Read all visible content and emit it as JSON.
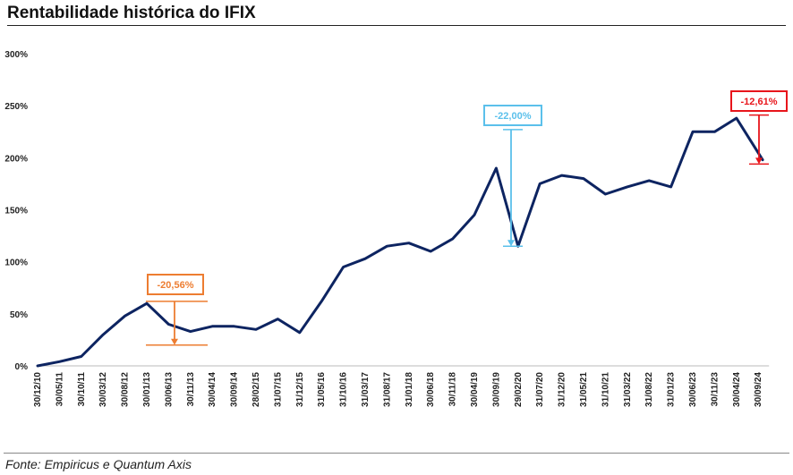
{
  "title": "Rentabilidade histórica do IFIX",
  "source": "Fonte: Empiricus e Quantum Axis",
  "colors": {
    "line": "#0d2461",
    "ann1": "#ed7d31",
    "ann2": "#5bc0eb",
    "ann3": "#e8151b"
  },
  "chart_data": {
    "type": "line",
    "title": "Rentabilidade histórica do IFIX",
    "xlabel": "",
    "ylabel": "",
    "ylim": [
      0,
      300
    ],
    "yticks": [
      "0%",
      "50%",
      "100%",
      "150%",
      "200%",
      "250%",
      "300%"
    ],
    "xticks": [
      "30/12/10",
      "30/05/11",
      "30/10/11",
      "30/03/12",
      "30/08/12",
      "30/01/13",
      "30/06/13",
      "30/11/13",
      "30/04/14",
      "30/09/14",
      "28/02/15",
      "31/07/15",
      "31/12/15",
      "31/05/16",
      "31/10/16",
      "31/03/17",
      "31/08/17",
      "31/01/18",
      "30/06/18",
      "30/11/18",
      "30/04/19",
      "30/09/19",
      "29/02/20",
      "31/07/20",
      "31/12/20",
      "31/05/21",
      "31/10/21",
      "31/03/22",
      "31/08/22",
      "31/01/23",
      "30/06/23",
      "30/11/23",
      "30/04/24",
      "30/09/24"
    ],
    "grid": false,
    "legend": "none",
    "series": [
      {
        "x": [
          0,
          1,
          2,
          3,
          4,
          5,
          6,
          7,
          8,
          9,
          10,
          11,
          12,
          13,
          14,
          15,
          16,
          17,
          18,
          19,
          20,
          21,
          22,
          23,
          24,
          25,
          26,
          27,
          28,
          29,
          30,
          31,
          32,
          33.2
        ],
        "values": [
          0,
          4,
          9,
          30,
          48,
          60,
          40,
          33,
          38,
          38,
          35,
          45,
          32,
          62,
          95,
          103,
          115,
          118,
          110,
          122,
          145,
          190,
          115,
          175,
          183,
          180,
          165,
          172,
          178,
          172,
          225,
          225,
          238,
          198
        ]
      }
    ],
    "annotations": [
      {
        "label": "-20,56%",
        "from": 62,
        "to": 20
      },
      {
        "label": "-22,00%",
        "from": 227,
        "to": 115
      },
      {
        "label": "-12,61%",
        "from": 241,
        "to": 194
      }
    ]
  }
}
